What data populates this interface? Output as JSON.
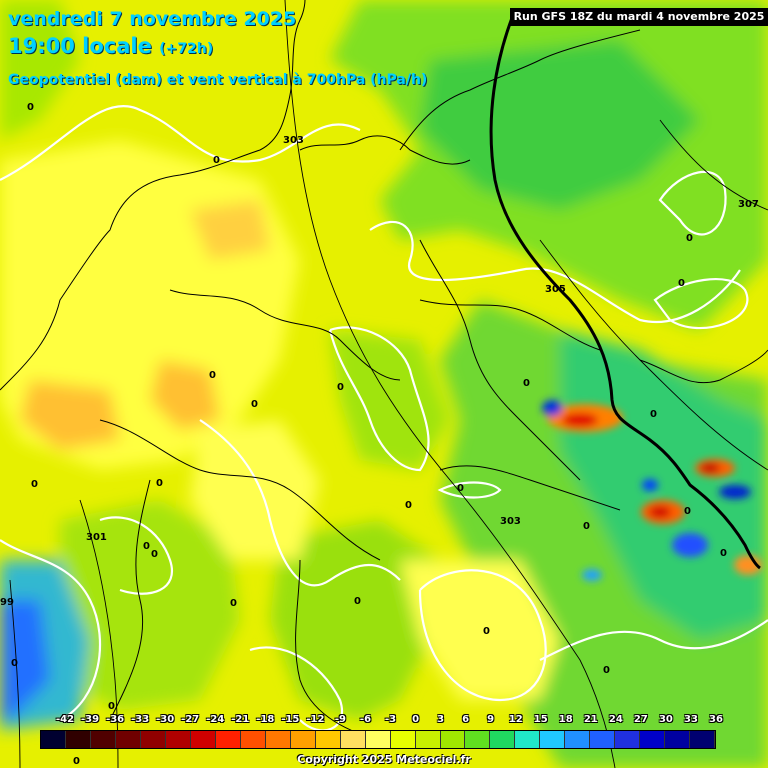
{
  "header": {
    "date_line": "vendredi 7 novembre 2025",
    "time_line": "19:00 locale",
    "lead_time": "(+72h)",
    "field_line": "Geopotentiel (dam) et vent vertical à 700hPa (hPa/h)",
    "run_info": "Run GFS 18Z du mardi 4 novembre 2025"
  },
  "contour_labels": {
    "geopotential": [
      "303",
      "305",
      "307",
      "301",
      "303",
      "99"
    ],
    "wind_zero": [
      "0",
      "0",
      "0",
      "0",
      "0",
      "0",
      "0",
      "0",
      "0",
      "0",
      "0",
      "0",
      "0",
      "0",
      "0",
      "0",
      "0",
      "0",
      "0",
      "0",
      "0",
      "0",
      "0",
      "0"
    ]
  },
  "legend": {
    "values": [
      "-42",
      "-39",
      "-36",
      "-33",
      "-30",
      "-27",
      "-24",
      "-21",
      "-18",
      "-15",
      "-12",
      "-9",
      "-6",
      "-3",
      "0",
      "3",
      "6",
      "9",
      "12",
      "15",
      "18",
      "21",
      "24",
      "27",
      "30",
      "33",
      "36"
    ],
    "colors": [
      "#000030",
      "#300000",
      "#500000",
      "#700000",
      "#900000",
      "#b00000",
      "#d00000",
      "#ff2000",
      "#ff5000",
      "#ff7800",
      "#ffa000",
      "#ffc800",
      "#ffe060",
      "#ffff60",
      "#e8ff00",
      "#c8f000",
      "#a0e800",
      "#60e020",
      "#20d860",
      "#20e8c8",
      "#20c8ff",
      "#2090ff",
      "#2060ff",
      "#2030e0",
      "#0000c8",
      "#0000a0",
      "#000070"
    ]
  },
  "footer": {
    "copyright": "Copyright 2025 Meteociel.fr",
    "bottom_zero": "0"
  },
  "colors": {
    "title": "#00d0ff",
    "contour": "#ffffff",
    "front": "#000000"
  }
}
